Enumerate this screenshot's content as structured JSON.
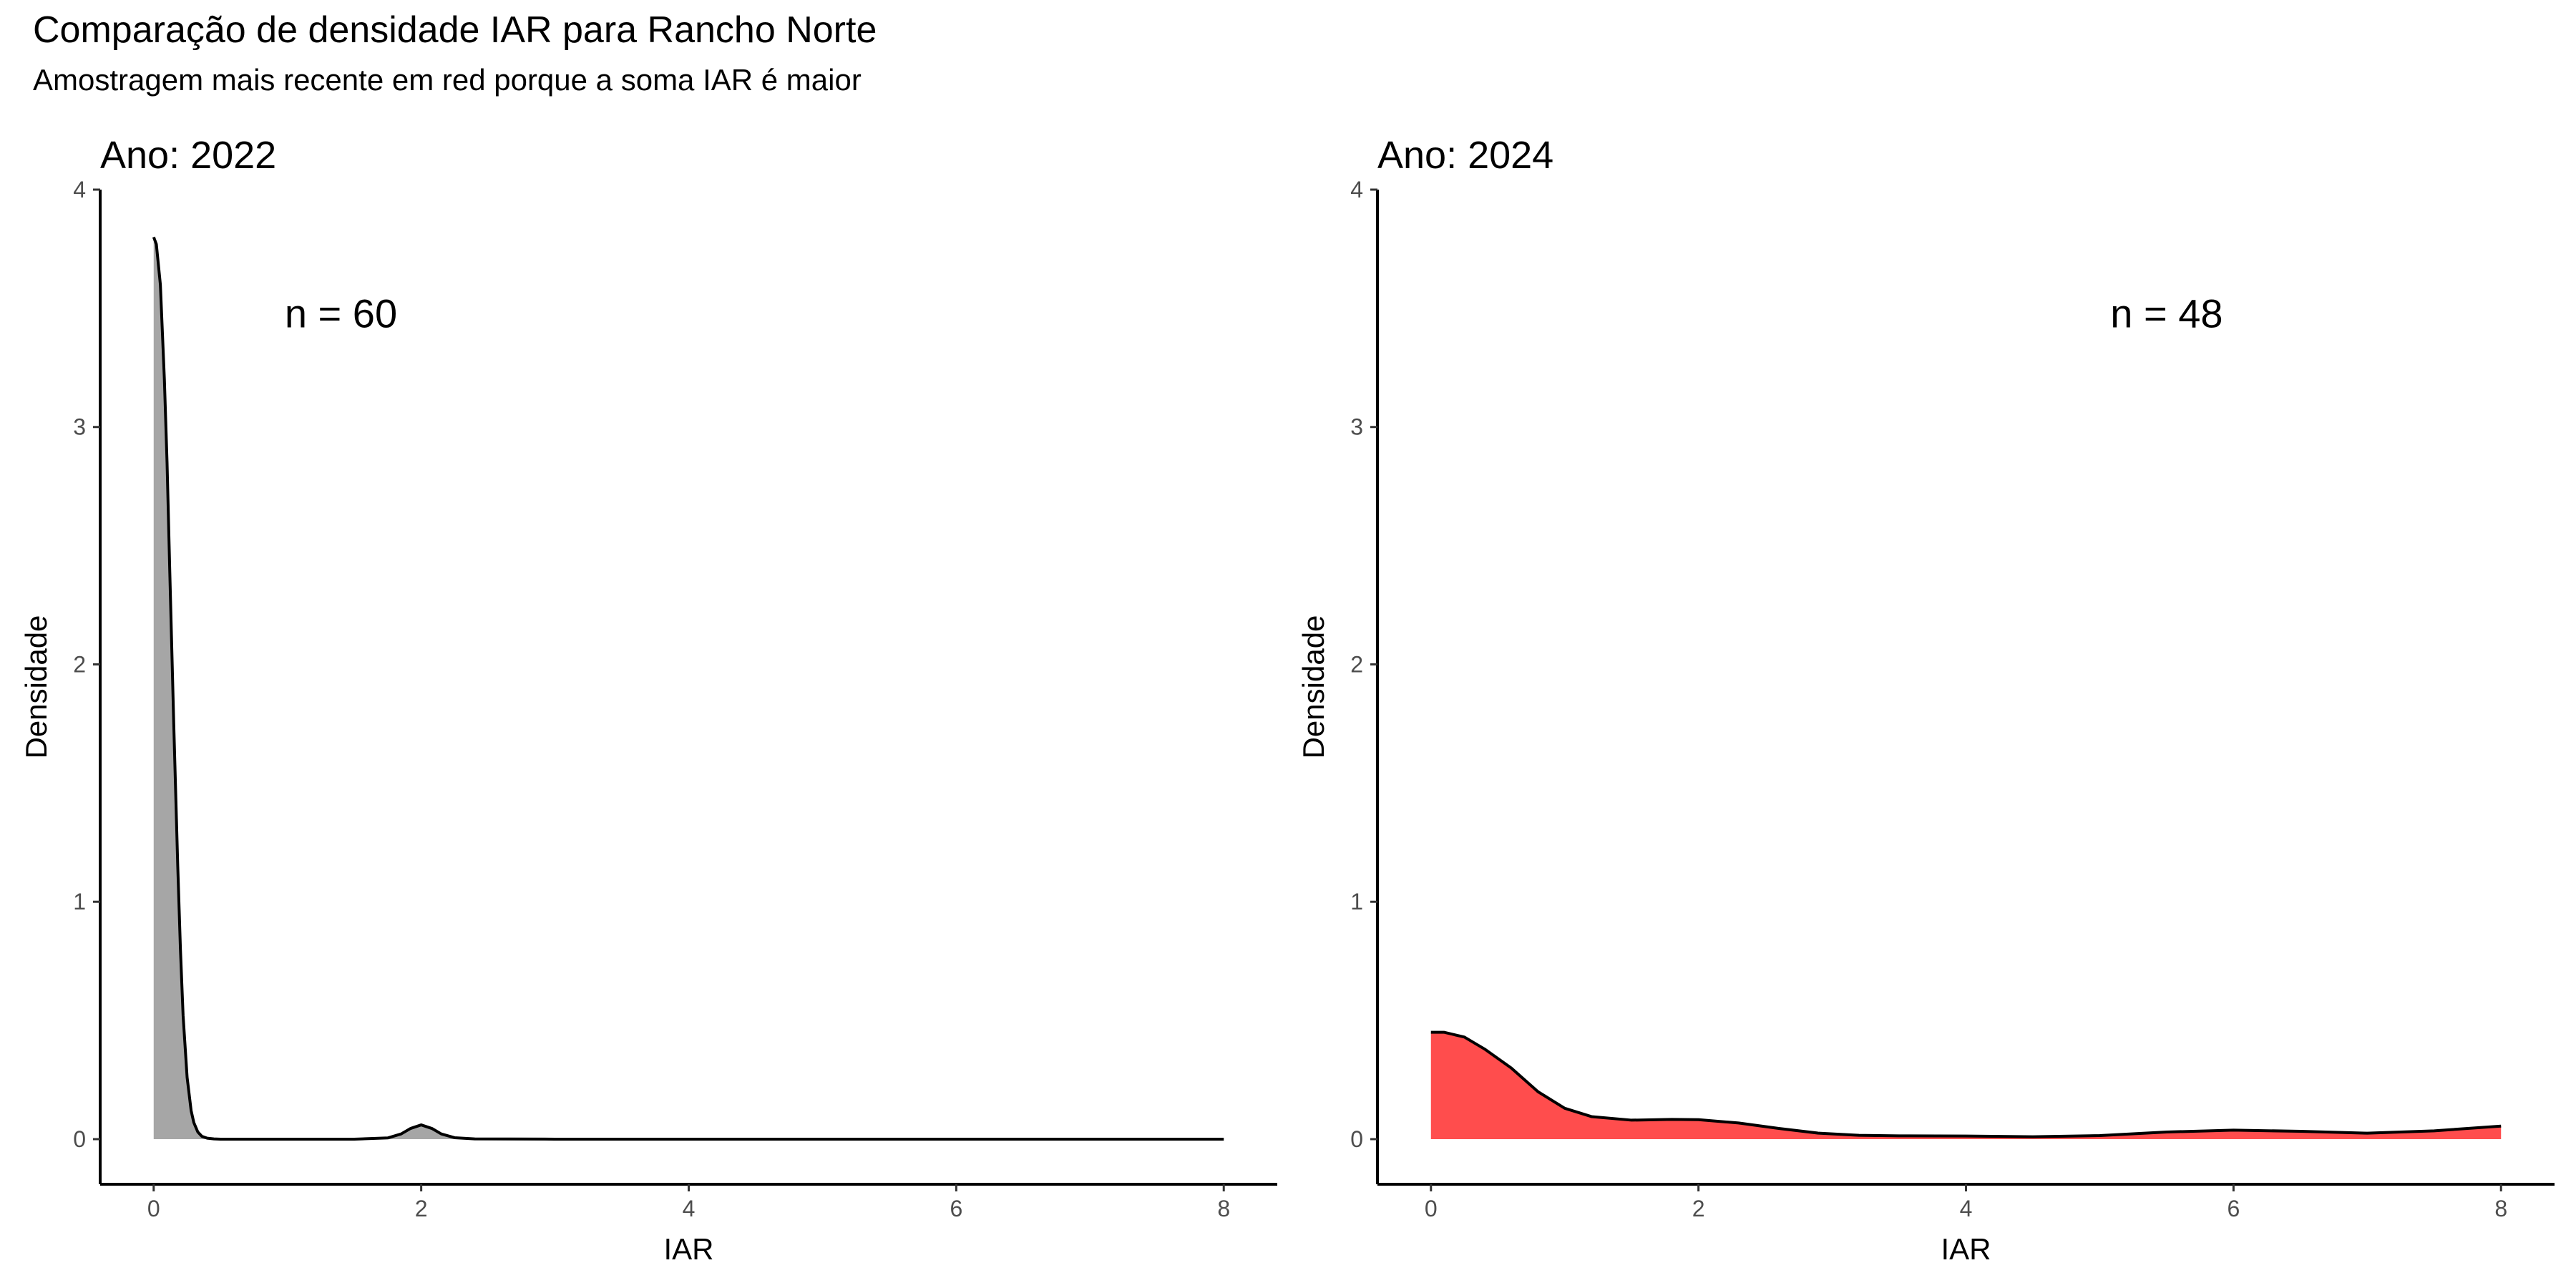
{
  "title": "Comparação de densidade IAR para Rancho Norte",
  "subtitle": "Amostragem mais recente em red porque a soma IAR é maior",
  "chart_data": [
    {
      "type": "area",
      "facet_title": "Ano: 2022",
      "xlabel": "IAR",
      "ylabel": "Densidade",
      "xlim": [
        -0.4,
        8.4
      ],
      "ylim": [
        -0.19,
        4.0
      ],
      "xticks": [
        0,
        2,
        4,
        6,
        8
      ],
      "yticks": [
        0,
        1,
        2,
        3,
        4
      ],
      "fill_color": "#A6A6A6",
      "line_color": "#000000",
      "annotation": {
        "text": "n = 60",
        "x": 1.4,
        "y": 3.42
      },
      "series": [
        {
          "x": [
            0,
            0.02,
            0.05,
            0.08,
            0.1,
            0.12,
            0.15,
            0.18,
            0.2,
            0.22,
            0.25,
            0.28,
            0.3,
            0.33,
            0.36,
            0.4,
            0.45,
            0.5,
            1.0,
            1.5,
            1.75,
            1.85,
            1.92,
            2.0,
            2.08,
            2.15,
            2.25,
            2.4,
            3,
            4,
            5,
            6,
            7,
            8
          ],
          "y": [
            3.8,
            3.77,
            3.6,
            3.2,
            2.85,
            2.4,
            1.75,
            1.15,
            0.8,
            0.52,
            0.26,
            0.12,
            0.07,
            0.03,
            0.012,
            0.004,
            0.001,
            0.0,
            0.0,
            0.0,
            0.005,
            0.022,
            0.045,
            0.06,
            0.045,
            0.022,
            0.006,
            0.001,
            0.0,
            0.0,
            0.0,
            0.0,
            0.0,
            0.0
          ]
        }
      ]
    },
    {
      "type": "area",
      "facet_title": "Ano: 2024",
      "xlabel": "IAR",
      "ylabel": "Densidade",
      "xlim": [
        -0.4,
        8.4
      ],
      "ylim": [
        -0.19,
        4.0
      ],
      "xticks": [
        0,
        2,
        4,
        6,
        8
      ],
      "yticks": [
        0,
        1,
        2,
        3,
        4
      ],
      "fill_color": "#FF4D4D",
      "line_color": "#000000",
      "annotation": {
        "text": "n = 48",
        "x": 5.5,
        "y": 3.42
      },
      "series": [
        {
          "x": [
            0,
            0.1,
            0.25,
            0.4,
            0.6,
            0.8,
            1.0,
            1.2,
            1.5,
            1.8,
            2.0,
            2.3,
            2.6,
            2.9,
            3.2,
            3.5,
            4.0,
            4.5,
            5.0,
            5.5,
            6.0,
            6.5,
            7.0,
            7.5,
            8.0
          ],
          "y": [
            0.45,
            0.45,
            0.43,
            0.38,
            0.3,
            0.2,
            0.13,
            0.095,
            0.08,
            0.083,
            0.082,
            0.068,
            0.045,
            0.025,
            0.016,
            0.014,
            0.013,
            0.01,
            0.015,
            0.03,
            0.038,
            0.033,
            0.025,
            0.035,
            0.055
          ]
        }
      ]
    }
  ]
}
